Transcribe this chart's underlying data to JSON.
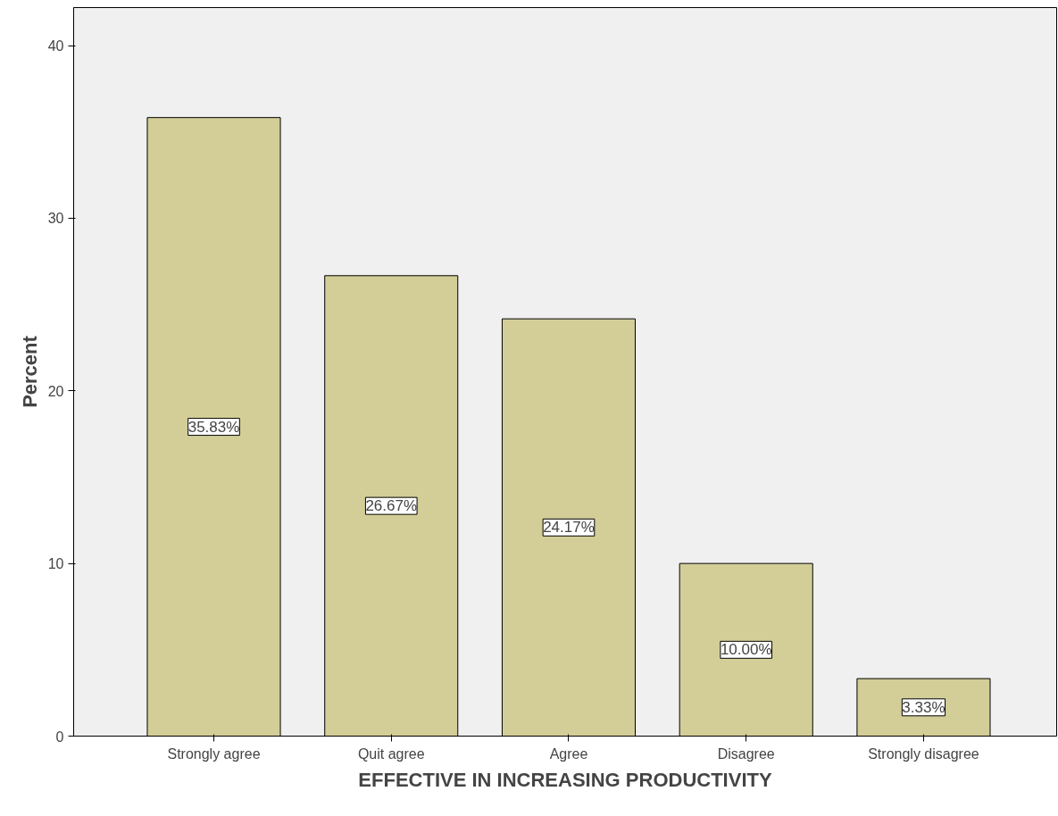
{
  "chart_data": {
    "type": "bar",
    "xlabel": "EFFECTIVE IN INCREASING PRODUCTIVITY",
    "ylabel": "Percent",
    "categories": [
      "Strongly agree",
      "Quit agree",
      "Agree",
      "Disagree",
      "Strongly disagree"
    ],
    "values": [
      35.83,
      26.67,
      24.17,
      10.0,
      3.33
    ],
    "value_labels": [
      "35.83%",
      "26.67%",
      "24.17%",
      "10.00%",
      "3.33%"
    ],
    "color": "#d3ce97",
    "ylim": [
      0,
      42.2
    ],
    "yticks": [
      0,
      10,
      20,
      30,
      40
    ],
    "grid": false
  }
}
